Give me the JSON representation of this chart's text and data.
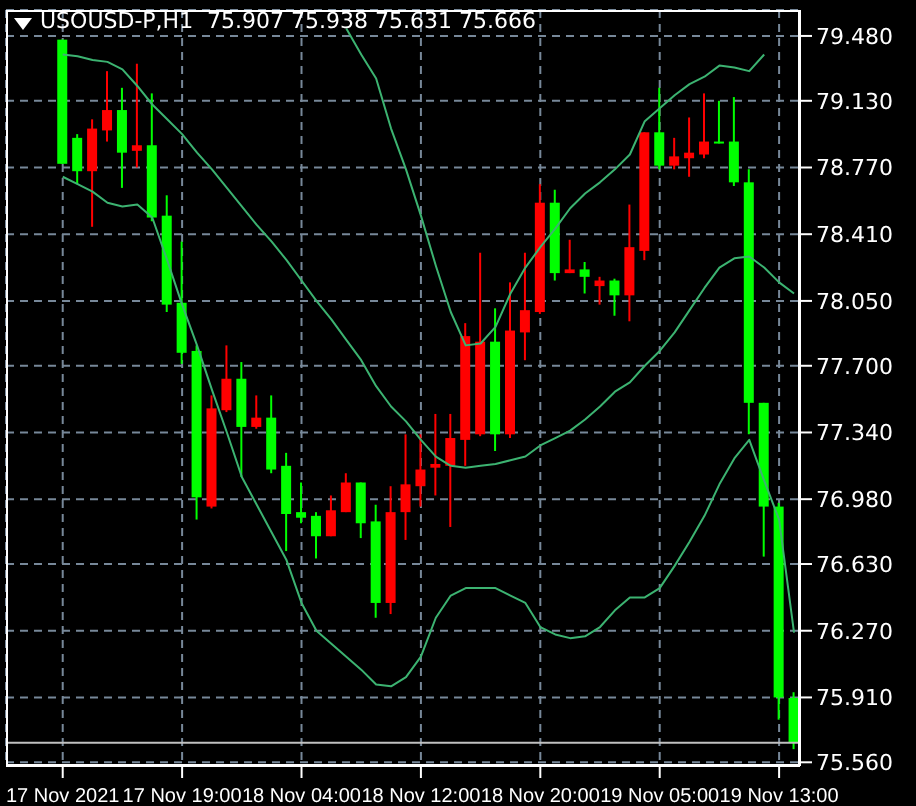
{
  "chart_data": {
    "type": "candlestick",
    "title": "USOUSD-P,H1  75.907 75.938 75.631 75.666",
    "categories": [
      "17 Nov 2021",
      null,
      null,
      null,
      null,
      null,
      null,
      null,
      "17 Nov 19:00",
      null,
      null,
      null,
      null,
      null,
      null,
      null,
      "18 Nov 04:00",
      null,
      null,
      null,
      null,
      null,
      null,
      null,
      "18 Nov 12:00",
      null,
      null,
      null,
      null,
      null,
      null,
      null,
      "18 Nov 20:00",
      null,
      null,
      null,
      null,
      null,
      null,
      null,
      "19 Nov 05:00",
      null,
      null,
      null,
      null,
      null,
      null,
      null,
      "19 Nov 13:00",
      null
    ],
    "ohlc": [
      [
        79.46,
        79.46,
        78.79,
        78.79
      ],
      [
        78.93,
        78.95,
        78.68,
        78.75
      ],
      [
        78.75,
        79.03,
        78.45,
        78.98
      ],
      [
        78.97,
        79.29,
        78.91,
        79.08
      ],
      [
        79.08,
        79.2,
        78.66,
        78.85
      ],
      [
        78.86,
        79.33,
        78.77,
        78.89
      ],
      [
        78.89,
        79.17,
        78.48,
        78.5
      ],
      [
        78.51,
        78.62,
        77.99,
        78.03
      ],
      [
        78.04,
        78.37,
        77.71,
        77.77
      ],
      [
        77.78,
        77.81,
        76.87,
        76.99
      ],
      [
        76.94,
        77.54,
        76.93,
        77.47
      ],
      [
        77.46,
        77.81,
        77.45,
        77.63
      ],
      [
        77.63,
        77.72,
        77.1,
        77.37
      ],
      [
        77.37,
        77.54,
        77.36,
        77.42
      ],
      [
        77.42,
        77.54,
        77.12,
        77.14
      ],
      [
        77.16,
        77.23,
        76.7,
        76.9
      ],
      [
        76.91,
        77.07,
        76.85,
        76.88
      ],
      [
        76.89,
        76.91,
        76.66,
        76.78
      ],
      [
        76.78,
        77.0,
        76.78,
        76.92
      ],
      [
        76.91,
        77.12,
        76.91,
        77.07
      ],
      [
        77.07,
        77.07,
        76.77,
        76.85
      ],
      [
        76.86,
        76.95,
        76.34,
        76.42
      ],
      [
        76.42,
        77.05,
        76.36,
        76.91
      ],
      [
        76.91,
        77.33,
        76.76,
        77.06
      ],
      [
        77.05,
        77.33,
        76.94,
        77.14
      ],
      [
        77.15,
        77.44,
        77.0,
        77.17
      ],
      [
        77.16,
        77.44,
        76.83,
        77.31
      ],
      [
        77.3,
        77.93,
        77.16,
        77.86
      ],
      [
        77.33,
        78.31,
        77.32,
        77.83
      ],
      [
        77.83,
        78.01,
        77.24,
        77.33
      ],
      [
        77.33,
        78.15,
        77.31,
        77.89
      ],
      [
        77.88,
        78.31,
        77.73,
        78.0
      ],
      [
        77.99,
        78.68,
        77.98,
        78.58
      ],
      [
        78.58,
        78.65,
        78.16,
        78.2
      ],
      [
        78.2,
        78.38,
        78.2,
        78.22
      ],
      [
        78.22,
        78.26,
        78.09,
        78.18
      ],
      [
        78.13,
        78.18,
        78.03,
        78.16
      ],
      [
        78.16,
        78.17,
        77.97,
        78.08
      ],
      [
        78.08,
        78.57,
        77.94,
        78.34
      ],
      [
        78.32,
        78.96,
        78.27,
        78.96
      ],
      [
        78.96,
        79.2,
        78.76,
        78.78
      ],
      [
        78.78,
        78.93,
        78.76,
        78.83
      ],
      [
        78.82,
        79.04,
        78.72,
        78.85
      ],
      [
        78.84,
        79.17,
        78.82,
        78.91
      ],
      [
        78.91,
        79.13,
        78.9,
        78.9
      ],
      [
        78.91,
        79.15,
        78.67,
        78.69
      ],
      [
        78.69,
        78.76,
        77.33,
        77.5
      ],
      [
        77.5,
        77.5,
        76.67,
        76.94
      ],
      [
        76.94,
        76.96,
        75.79,
        75.91
      ],
      [
        75.907,
        75.938,
        75.631,
        75.666
      ]
    ],
    "colors": [
      "#00ff00",
      "#00ff00",
      "#ff0000",
      "#ff0000",
      "#00ff00",
      "#ff0000",
      "#00ff00",
      "#00ff00",
      "#00ff00",
      "#00ff00",
      "#ff0000",
      "#ff0000",
      "#00ff00",
      "#ff0000",
      "#00ff00",
      "#00ff00",
      "#00ff00",
      "#00ff00",
      "#ff0000",
      "#ff0000",
      "#00ff00",
      "#00ff00",
      "#ff0000",
      "#ff0000",
      "#ff0000",
      "#ff0000",
      "#ff0000",
      "#ff0000",
      "#ff0000",
      "#00ff00",
      "#ff0000",
      "#ff0000",
      "#ff0000",
      "#00ff00",
      "#ff0000",
      "#00ff00",
      "#ff0000",
      "#00ff00",
      "#ff0000",
      "#ff0000",
      "#00ff00",
      "#ff0000",
      "#ff0000",
      "#ff0000",
      "#00ff00",
      "#00ff00",
      "#00ff00",
      "#00ff00",
      "#00ff00",
      "#00ff00"
    ],
    "series": [
      {
        "type": "line",
        "color": "#3cb371",
        "values": [
          null,
          null,
          null,
          null,
          null,
          null,
          null,
          null,
          null,
          null,
          null,
          null,
          null,
          null,
          null,
          null,
          null,
          null,
          null,
          79.52,
          79.38,
          79.25,
          78.98,
          78.76,
          78.51,
          78.24,
          77.99,
          77.81,
          77.82,
          77.91,
          78.09,
          78.23,
          78.34,
          78.44,
          78.55,
          78.63,
          78.69,
          78.76,
          78.84,
          79.02,
          79.09,
          79.16,
          79.22,
          79.26,
          79.32,
          79.31,
          79.29,
          79.38,
          null,
          null
        ]
      },
      {
        "type": "line",
        "color": "#3cb371",
        "values": [
          79.38,
          79.37,
          79.35,
          79.34,
          79.3,
          79.21,
          79.11,
          79.03,
          78.95,
          78.85,
          78.76,
          78.66,
          78.56,
          78.46,
          78.37,
          78.27,
          78.16,
          78.05,
          77.95,
          77.84,
          77.73,
          77.59,
          77.48,
          77.4,
          77.3,
          77.21,
          77.16,
          77.15,
          77.16,
          77.17,
          77.19,
          77.21,
          77.27,
          77.31,
          77.35,
          77.41,
          77.48,
          77.56,
          77.61,
          77.7,
          77.78,
          77.88,
          78.0,
          78.12,
          78.23,
          78.28,
          78.29,
          78.23,
          78.15,
          78.09
        ]
      },
      {
        "type": "line",
        "color": "#3cb371",
        "values": [
          78.72,
          78.68,
          78.64,
          78.58,
          78.56,
          78.57,
          78.5,
          78.27,
          78.03,
          77.81,
          77.57,
          77.34,
          77.1,
          76.95,
          76.8,
          76.65,
          76.42,
          76.27,
          76.2,
          76.13,
          76.06,
          75.98,
          75.97,
          76.02,
          76.13,
          76.34,
          76.46,
          76.5,
          76.5,
          76.5,
          76.46,
          76.42,
          76.29,
          76.25,
          76.23,
          76.24,
          76.29,
          76.38,
          76.45,
          76.45,
          76.5,
          76.62,
          76.75,
          76.89,
          77.06,
          77.2,
          77.3,
          77.08,
          76.87,
          76.26
        ]
      }
    ],
    "ylim": [
      75.54,
      79.62
    ],
    "yticks": [
      {
        "value": 79.48,
        "label": "79.480"
      },
      {
        "value": 79.13,
        "label": "79.130"
      },
      {
        "value": 78.77,
        "label": "78.770"
      },
      {
        "value": 78.41,
        "label": "78.410"
      },
      {
        "value": 78.05,
        "label": "78.050"
      },
      {
        "value": 77.7,
        "label": "77.700"
      },
      {
        "value": 77.34,
        "label": "77.340"
      },
      {
        "value": 76.98,
        "label": "76.980"
      },
      {
        "value": 76.63,
        "label": "76.630"
      },
      {
        "value": 76.27,
        "label": "76.270"
      },
      {
        "value": 75.91,
        "label": "75.910"
      },
      {
        "value": 75.56,
        "label": "75.560"
      }
    ],
    "grid": true,
    "ref_lines": [
      {
        "axis": "y",
        "value": 75.666,
        "color": "#c0c0c0"
      }
    ]
  }
}
